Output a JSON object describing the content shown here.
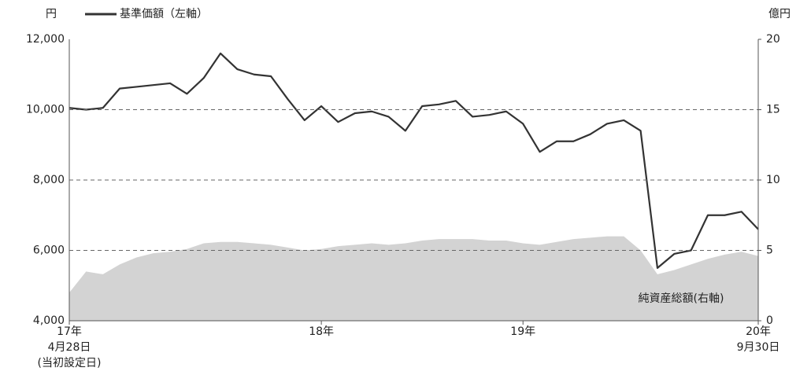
{
  "chart_data": {
    "type": "line",
    "ylabel": "円",
    "y2label": "億円",
    "categories": [
      "17年\n4月28日\n(当初設定日)",
      null,
      null,
      null,
      null,
      null,
      null,
      null,
      null,
      null,
      null,
      null,
      null,
      null,
      null,
      "18年",
      null,
      null,
      null,
      null,
      null,
      null,
      null,
      null,
      null,
      null,
      null,
      "19年",
      null,
      null,
      null,
      null,
      null,
      null,
      null,
      null,
      null,
      null,
      null,
      null,
      null,
      "20年\n9月30日"
    ],
    "series": [
      {
        "name": "基準価額（左軸）",
        "color": "#333333",
        "axis": "y",
        "values": [
          10050,
          10000,
          10050,
          10600,
          10650,
          10700,
          10750,
          10450,
          10900,
          11600,
          11150,
          11000,
          10950,
          10300,
          9700,
          10100,
          9650,
          9900,
          9950,
          9800,
          9400,
          10100,
          10150,
          10250,
          9800,
          9850,
          9950,
          9600,
          8800,
          9100,
          9100,
          9300,
          9600,
          9700,
          9400,
          5500,
          5900,
          6000,
          7000,
          7000,
          7100,
          6600
        ]
      },
      {
        "name": "純資産総額(右軸)",
        "color": "#d3d3d3",
        "axis": "y2",
        "type": "area",
        "values": [
          2.0,
          3.5,
          3.3,
          4.0,
          4.5,
          4.8,
          4.9,
          5.1,
          5.5,
          5.6,
          5.6,
          5.5,
          5.4,
          5.2,
          5.0,
          5.1,
          5.3,
          5.4,
          5.5,
          5.4,
          5.5,
          5.7,
          5.8,
          5.8,
          5.8,
          5.7,
          5.7,
          5.5,
          5.4,
          5.6,
          5.8,
          5.9,
          6.0,
          6.0,
          5.0,
          3.3,
          3.6,
          4.0,
          4.4,
          4.7,
          4.9,
          4.6
        ]
      }
    ],
    "ylim": [
      4000,
      12000
    ],
    "yticks": [
      {
        "value": 4000,
        "label": "4,000"
      },
      {
        "value": 6000,
        "label": "6,000"
      },
      {
        "value": 8000,
        "label": "8,000"
      },
      {
        "value": 10000,
        "label": "10,000"
      },
      {
        "value": 12000,
        "label": "12,000"
      }
    ],
    "y2lim": [
      0,
      20
    ],
    "y2ticks": [
      0,
      5,
      10,
      15,
      20
    ],
    "grid": true
  }
}
